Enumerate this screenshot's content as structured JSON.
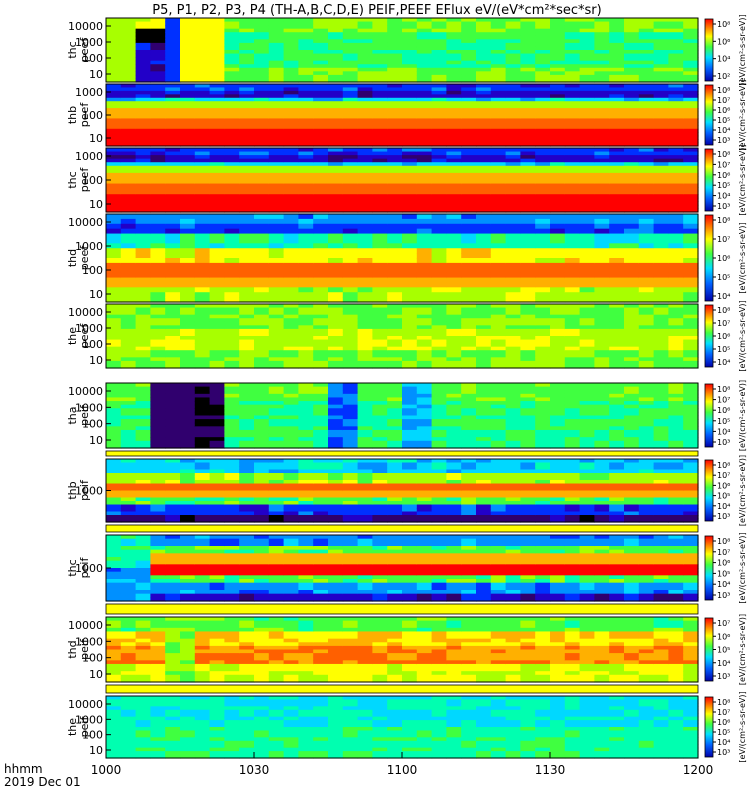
{
  "title": "P5, P1, P2, P3, P4 (TH-A,B,C,D,E) PEIF,PEEF EFlux eV/(eV*cm²*sec*sr)",
  "footer": {
    "hhmm": "hhmm",
    "date": "2019 Dec 01",
    "x_ticks": [
      "1000",
      "1030",
      "1100",
      "1130",
      "1200"
    ]
  },
  "colorbar_label": "[eV/(cm²-s-sr-eV)]",
  "chart_data": {
    "type": "heatmap",
    "x_range": [
      "1000",
      "1200"
    ],
    "panels": [
      {
        "name": "thc peef",
        "line1": "thc",
        "line2": "peef",
        "yticks": [
          "10000",
          "1000",
          "100",
          "10"
        ],
        "cbar_ticks": [
          "10⁸",
          "10⁶",
          "10⁴",
          "10²"
        ]
      },
      {
        "name": "thb peef",
        "line1": "thb",
        "line2": "peef",
        "yticks": [
          "1000",
          "100",
          "10"
        ],
        "cbar_ticks": [
          "10⁸",
          "10⁷",
          "10⁶",
          "10⁵",
          "10⁴",
          "10³"
        ]
      },
      {
        "name": "thc peef",
        "line1": "thc",
        "line2": "peef",
        "yticks": [
          "1000",
          "100",
          "10"
        ],
        "cbar_ticks": [
          "10⁸",
          "10⁷",
          "10⁶",
          "10⁵",
          "10⁴",
          "10³"
        ]
      },
      {
        "name": "thd peef",
        "line1": "thd",
        "line2": "peef",
        "yticks": [
          "10000",
          "1000",
          "100",
          "10"
        ],
        "cbar_ticks": [
          "10⁸",
          "10⁷",
          "10⁶",
          "10⁵",
          "10⁴"
        ]
      },
      {
        "name": "the peef",
        "line1": "the",
        "line2": "peef",
        "yticks": [
          "10000",
          "1000",
          "100",
          "10"
        ],
        "cbar_ticks": [
          "10⁸",
          "10⁷",
          "10⁶",
          "10⁵",
          "10⁴"
        ]
      },
      {
        "name": "tha peif",
        "line1": "tha",
        "line2": "peif",
        "yticks": [
          "10000",
          "1000",
          "100",
          "10"
        ],
        "cbar_ticks": [
          "10⁸",
          "10⁷",
          "10⁶",
          "10⁵",
          "10⁴",
          "10³"
        ]
      },
      {
        "name": "thb peif",
        "line1": "thb",
        "line2": "peif",
        "yticks": [
          "1000"
        ],
        "cbar_ticks": [
          "10⁸",
          "10⁷",
          "10⁶",
          "10⁵",
          "10⁴",
          "10³"
        ]
      },
      {
        "name": "thc peif",
        "line1": "thc",
        "line2": "peif",
        "yticks": [
          "1000"
        ],
        "cbar_ticks": [
          "10⁸",
          "10⁷",
          "10⁶",
          "10⁵",
          "10⁴",
          "10³"
        ]
      },
      {
        "name": "thd peif",
        "line1": "thd",
        "line2": "peif",
        "yticks": [
          "10000",
          "1000",
          "100",
          "10"
        ],
        "cbar_ticks": [
          "10⁷",
          "10⁶",
          "10⁵",
          "10⁴",
          "10³"
        ]
      },
      {
        "name": "the peif",
        "line1": "the",
        "line2": "peif",
        "yticks": [
          "10000",
          "1000",
          "100",
          "10"
        ],
        "cbar_ticks": [
          "10⁸",
          "10⁷",
          "10⁶",
          "10⁵",
          "10⁴",
          "10³"
        ]
      }
    ]
  }
}
